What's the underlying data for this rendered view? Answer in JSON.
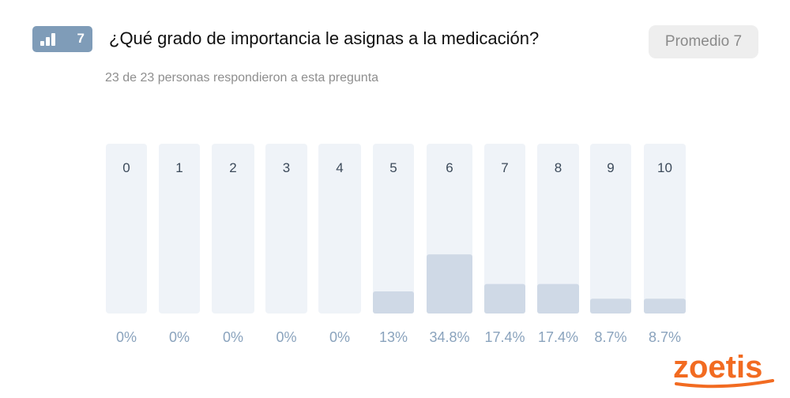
{
  "question": {
    "badge_number": "7",
    "badge_icon": "bar-chart-icon",
    "title": "¿Qué grado de importancia le asignas a la medicación?",
    "average_label": "Promedio 7",
    "responses_text": "23 de 23 personas respondieron a esta pregunta"
  },
  "colors": {
    "badge": "#7f9cb8",
    "track": "#eff3f8",
    "fill": "#cfd9e6",
    "category_text": "#3c4a5a",
    "percent_text": "#8aa3bd",
    "brand": "#f26b21"
  },
  "chart_data": {
    "type": "bar",
    "title": "¿Qué grado de importancia le asignas a la medicación?",
    "categories": [
      "0",
      "1",
      "2",
      "3",
      "4",
      "5",
      "6",
      "7",
      "8",
      "9",
      "10"
    ],
    "values": [
      0,
      0,
      0,
      0,
      0,
      13,
      34.8,
      17.4,
      17.4,
      8.7,
      8.7
    ],
    "value_labels": [
      "0%",
      "0%",
      "0%",
      "0%",
      "0%",
      "13%",
      "34.8%",
      "17.4%",
      "17.4%",
      "8.7%",
      "8.7%"
    ],
    "xlabel": "",
    "ylabel": "",
    "ylim": [
      0,
      100
    ],
    "grid": false
  },
  "brand": {
    "logo_text": "zoetis"
  }
}
